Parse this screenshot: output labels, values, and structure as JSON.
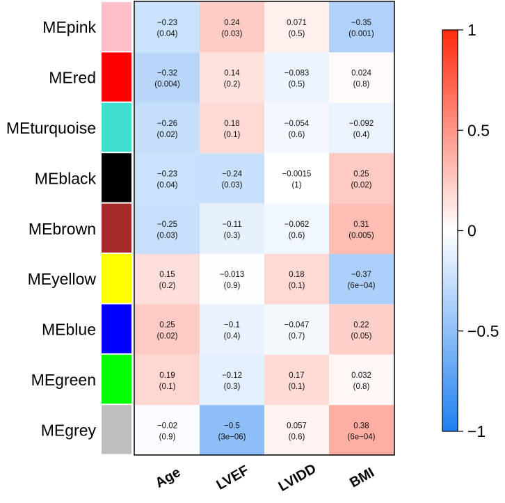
{
  "chart_data": {
    "type": "heatmap",
    "title": "",
    "rows": [
      {
        "name": "MEpink",
        "color": "#FFC0CB"
      },
      {
        "name": "MEred",
        "color": "#FF0000"
      },
      {
        "name": "MEturquoise",
        "color": "#40E0D0"
      },
      {
        "name": "MEblack",
        "color": "#000000"
      },
      {
        "name": "MEbrown",
        "color": "#A52A2A"
      },
      {
        "name": "MEyellow",
        "color": "#FFFF00"
      },
      {
        "name": "MEblue",
        "color": "#0000FF"
      },
      {
        "name": "MEgreen",
        "color": "#00FF00"
      },
      {
        "name": "MEgrey",
        "color": "#BEBEBE"
      }
    ],
    "columns": [
      "Age",
      "LVEF",
      "LVIDD",
      "BMI"
    ],
    "values": [
      [
        -0.23,
        0.24,
        0.071,
        -0.35
      ],
      [
        -0.32,
        0.14,
        -0.083,
        0.024
      ],
      [
        -0.26,
        0.18,
        -0.054,
        -0.092
      ],
      [
        -0.23,
        -0.24,
        -0.0015,
        0.25
      ],
      [
        -0.25,
        -0.11,
        -0.062,
        0.31
      ],
      [
        0.15,
        -0.013,
        0.18,
        -0.37
      ],
      [
        0.25,
        -0.1,
        -0.047,
        0.22
      ],
      [
        0.19,
        -0.12,
        0.17,
        0.032
      ],
      [
        -0.02,
        -0.5,
        0.057,
        0.38
      ]
    ],
    "value_labels": [
      [
        "−0.23",
        "0.24",
        "0.071",
        "−0.35"
      ],
      [
        "−0.32",
        "0.14",
        "−0.083",
        "0.024"
      ],
      [
        "−0.26",
        "0.18",
        "−0.054",
        "−0.092"
      ],
      [
        "−0.23",
        "−0.24",
        "−0.0015",
        "0.25"
      ],
      [
        "−0.25",
        "−0.11",
        "−0.062",
        "0.31"
      ],
      [
        "0.15",
        "−0.013",
        "0.18",
        "−0.37"
      ],
      [
        "0.25",
        "−0.1",
        "−0.047",
        "0.22"
      ],
      [
        "0.19",
        "−0.12",
        "0.17",
        "0.032"
      ],
      [
        "−0.02",
        "−0.5",
        "0.057",
        "0.38"
      ]
    ],
    "pvalue_labels": [
      [
        "(0.04)",
        "(0.03)",
        "(0.5)",
        "(0.001)"
      ],
      [
        "(0.004)",
        "(0.2)",
        "(0.5)",
        "(0.8)"
      ],
      [
        "(0.02)",
        "(0.1)",
        "(0.6)",
        "(0.4)"
      ],
      [
        "(0.04)",
        "(0.03)",
        "(1)",
        "(0.02)"
      ],
      [
        "(0.03)",
        "(0.3)",
        "(0.6)",
        "(0.005)"
      ],
      [
        "(0.2)",
        "(0.9)",
        "(0.1)",
        "(6e−04)"
      ],
      [
        "(0.02)",
        "(0.4)",
        "(0.7)",
        "(0.05)"
      ],
      [
        "(0.1)",
        "(0.3)",
        "(0.1)",
        "(0.8)"
      ],
      [
        "(0.9)",
        "(3e−06)",
        "(0.6)",
        "(6e−04)"
      ]
    ],
    "colorbar": {
      "range": [
        -1,
        1
      ],
      "ticks": [
        1,
        0.5,
        0,
        -0.5,
        -1
      ],
      "tick_labels": [
        "1",
        "0.5",
        "0",
        "−0.5",
        "−1"
      ],
      "colors": {
        "low": "#1E7FF0",
        "mid": "#FFFFFF",
        "high": "#FF2A0E"
      }
    },
    "grid": false,
    "legend_position": "right"
  }
}
